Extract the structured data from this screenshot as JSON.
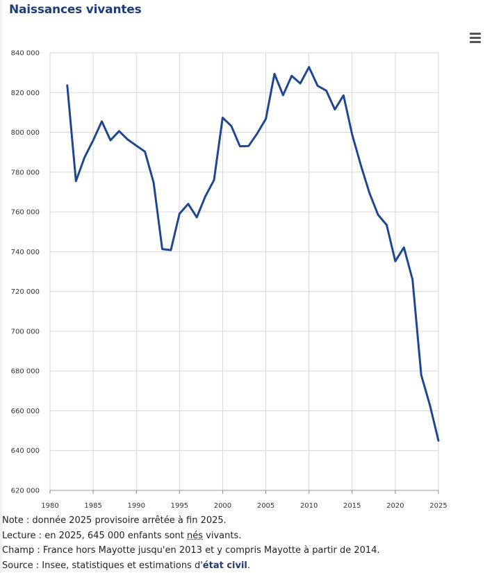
{
  "header": {
    "title": "Naissances vivantes"
  },
  "menu": {
    "icon": "hamburger-menu-icon"
  },
  "chart_data": {
    "type": "line",
    "title": "Naissances vivantes",
    "xlabel": "",
    "ylabel": "",
    "xlim": [
      1980,
      2025
    ],
    "ylim": [
      620000,
      840000
    ],
    "x_ticks": [
      "1980",
      "1985",
      "1990",
      "1995",
      "2000",
      "2005",
      "2010",
      "2015",
      "2020",
      "2025"
    ],
    "y_ticks": [
      "620 000",
      "640 000",
      "660 000",
      "680 000",
      "700 000",
      "720 000",
      "740 000",
      "760 000",
      "780 000",
      "800 000",
      "820 000",
      "840 000"
    ],
    "grid": true,
    "line_color": "#1f4691",
    "series": [
      {
        "x": [
          1982,
          1983,
          1984,
          1985,
          1986,
          1987,
          1988,
          1989,
          1990,
          1991,
          1992,
          1993,
          1994,
          1995,
          1996,
          1997,
          1998,
          1999,
          2000,
          2001,
          2002,
          2003,
          2004,
          2005,
          2006,
          2007,
          2008,
          2009,
          2010,
          2011,
          2012,
          2013,
          2014,
          2015,
          2016,
          2017,
          2018,
          2019,
          2020,
          2021,
          2022,
          2023,
          2024,
          2025
        ],
        "y": [
          823600,
          775500,
          787400,
          796000,
          805500,
          796000,
          800600,
          796400,
          793300,
          790300,
          774700,
          741300,
          740800,
          759100,
          764000,
          757300,
          767900,
          776000,
          807400,
          803200,
          793000,
          793100,
          799400,
          806800,
          829400,
          818700,
          828400,
          824600,
          832800,
          823400,
          821000,
          811500,
          818600,
          798900,
          783600,
          769600,
          758600,
          753400,
          735200,
          742100,
          726000,
          678000,
          663000,
          645000
        ]
      }
    ]
  },
  "notes": {
    "note": "Note : donnée 2025 provisoire arrêtée à fin 2025.",
    "lecture_prefix": "Lecture : en 2025, 645 000 enfants sont ",
    "lecture_link": "nés",
    "lecture_suffix": " vivants.",
    "champ": "Champ : France hors Mayotte jusqu'en 2013 et y compris Mayotte à partir de 2014.",
    "source_prefix": "Source : Insee, statistiques et estimations d'",
    "source_link": "état civil",
    "source_suffix": "."
  }
}
